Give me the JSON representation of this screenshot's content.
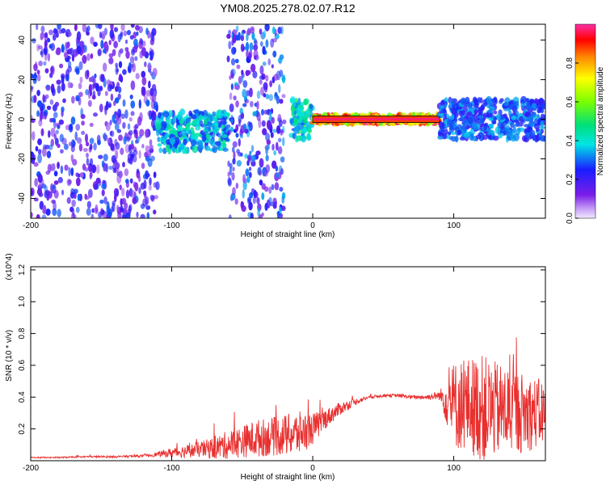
{
  "title": "YM08.2025.278.02.07.R12",
  "chart_data": [
    {
      "type": "heatmap",
      "xlabel": "Height of straight line (km)",
      "ylabel": "Frequency (Hz)",
      "xlim": [
        -200,
        165
      ],
      "ylim": [
        -50,
        48
      ],
      "xticks": [
        -200,
        -100,
        0,
        100
      ],
      "yticks": [
        -40,
        -20,
        0,
        20,
        40
      ],
      "colorbar": {
        "label": "Normalized spectral amplitude",
        "range": [
          0,
          1
        ],
        "ticks": [
          "0.0",
          "0.2",
          "0.4",
          "0.6",
          "0.8"
        ]
      },
      "regions": [
        {
          "x_range": [
            -200,
            -110
          ],
          "description": "scattered weak noise, all frequencies",
          "level": 0.25
        },
        {
          "x_range": [
            -110,
            -60
          ],
          "freq_center": -6,
          "level": 0.45
        },
        {
          "x_range": [
            -60,
            -20
          ],
          "description": "broadband vertical streaks",
          "level": 0.3
        },
        {
          "x_range": [
            -15,
            0
          ],
          "freq_center": 0,
          "level": 0.5
        },
        {
          "x_range": [
            0,
            90
          ],
          "freq_center": 0,
          "level": 0.95
        },
        {
          "x_range": [
            90,
            165
          ],
          "freq_center": 0,
          "level": 0.35
        }
      ]
    },
    {
      "type": "line",
      "xlabel": "Height of straight line (km)",
      "ylabel": "SNR (10 * v/v)",
      "y_multiplier": "(x10^4)",
      "xlim": [
        -200,
        165
      ],
      "ylim": [
        0,
        1.22
      ],
      "xticks": [
        -200,
        -100,
        0,
        100
      ],
      "yticks": [
        "0.2",
        "0.4",
        "0.6",
        "0.8",
        "1.0",
        "1.2"
      ],
      "color": "#e8302f",
      "series": [
        {
          "x": [
            -200,
            -180,
            -160,
            -140,
            -120,
            -110,
            -100,
            -90,
            -80,
            -70,
            -60,
            -50,
            -40,
            -30,
            -20,
            -10,
            0,
            10,
            20,
            30,
            40,
            50,
            60,
            70,
            80,
            90,
            100,
            110,
            120,
            130,
            140,
            150,
            160,
            165
          ],
          "y": [
            0.02,
            0.02,
            0.025,
            0.025,
            0.03,
            0.04,
            0.05,
            0.06,
            0.07,
            0.08,
            0.1,
            0.12,
            0.14,
            0.15,
            0.16,
            0.17,
            0.2,
            0.27,
            0.33,
            0.37,
            0.4,
            0.41,
            0.41,
            0.4,
            0.4,
            0.41,
            0.35,
            0.35,
            0.33,
            0.32,
            0.32,
            0.3,
            0.3,
            0.3
          ],
          "noise": [
            0.004,
            0.004,
            0.005,
            0.006,
            0.008,
            0.015,
            0.03,
            0.04,
            0.05,
            0.07,
            0.09,
            0.1,
            0.12,
            0.12,
            0.13,
            0.14,
            0.1,
            0.06,
            0.04,
            0.02,
            0.01,
            0.01,
            0.01,
            0.01,
            0.015,
            0.03,
            0.28,
            0.3,
            0.34,
            0.3,
            0.28,
            0.25,
            0.22,
            0.2
          ]
        }
      ]
    }
  ]
}
